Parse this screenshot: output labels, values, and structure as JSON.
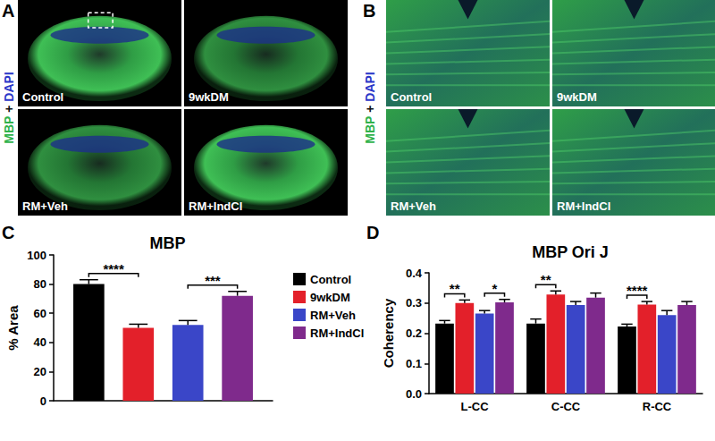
{
  "image_panels": [
    {
      "label": "A",
      "stain": [
        {
          "text": "MBP",
          "color": "#2fb24a"
        },
        {
          "text": "+",
          "color": "#111111"
        },
        {
          "text": "DAPI",
          "color": "#2a36c8"
        }
      ],
      "images": [
        "Control",
        "9wkDM",
        "RM+Veh",
        "RM+IndCl"
      ]
    },
    {
      "label": "B",
      "stain": [
        {
          "text": "MBP",
          "color": "#2fb24a"
        },
        {
          "text": "+",
          "color": "#111111"
        },
        {
          "text": "DAPI",
          "color": "#2a36c8"
        }
      ],
      "images": [
        "Control",
        "9wkDM",
        "RM+Veh",
        "RM+IndCl"
      ]
    }
  ],
  "chart_data": [
    {
      "panel": "C",
      "type": "bar",
      "title": "MBP",
      "y_label": "% Area",
      "categories": [
        null
      ],
      "series": [
        {
          "name": "Control",
          "color": "#000000",
          "values": [
            80
          ],
          "errors": [
            3
          ]
        },
        {
          "name": "9wkDM",
          "color": "#e3202a",
          "values": [
            50
          ],
          "errors": [
            2.5
          ]
        },
        {
          "name": "RM+Veh",
          "color": "#3a46c8",
          "values": [
            52
          ],
          "errors": [
            3
          ]
        },
        {
          "name": "RM+IndCl",
          "color": "#7f2a8c",
          "values": [
            72
          ],
          "errors": [
            3
          ]
        }
      ],
      "ylim": [
        0,
        100
      ],
      "yticks": [
        0,
        20,
        40,
        60,
        80,
        100
      ],
      "grid": false,
      "legend": "right",
      "tick_labels": "y",
      "annotations": [
        {
          "text": "****",
          "category": 0,
          "between": [
            "Control",
            "9wkDM"
          ]
        },
        {
          "text": "***",
          "category": 0,
          "between": [
            "RM+Veh",
            "RM+IndCl"
          ]
        }
      ]
    },
    {
      "panel": "D",
      "type": "bar",
      "title": "MBP Ori J",
      "y_label": "Coherency",
      "categories": [
        "L-CC",
        "C-CC",
        "R-CC"
      ],
      "series": [
        {
          "name": "Control",
          "color": "#000000",
          "values": [
            0.232,
            0.232,
            0.222
          ],
          "errors": [
            0.01,
            0.015,
            0.008
          ]
        },
        {
          "name": "9wkDM",
          "color": "#e3202a",
          "values": [
            0.3,
            0.328,
            0.295
          ],
          "errors": [
            0.01,
            0.012,
            0.01
          ]
        },
        {
          "name": "RM+Veh",
          "color": "#3a46c8",
          "values": [
            0.265,
            0.293,
            0.26
          ],
          "errors": [
            0.01,
            0.012,
            0.015
          ]
        },
        {
          "name": "RM+IndCl",
          "color": "#7f2a8c",
          "values": [
            0.302,
            0.318,
            0.293
          ],
          "errors": [
            0.01,
            0.015,
            0.012
          ]
        }
      ],
      "ylim": [
        0,
        0.4
      ],
      "yticks": [
        {
          "value": 0,
          "label": "0.0"
        },
        0.1,
        0.2,
        0.3,
        0.4
      ],
      "grid": false,
      "annotations": [
        {
          "text": "**",
          "category": 0,
          "between": [
            "Control",
            "9wkDM"
          ]
        },
        {
          "text": "*",
          "category": 0,
          "between": [
            "RM+Veh",
            "RM+IndCl"
          ]
        },
        {
          "text": "**",
          "category": 1,
          "between": [
            "Control",
            "9wkDM"
          ]
        },
        {
          "text": "****",
          "category": 2,
          "between": [
            "Control",
            "9wkDM"
          ]
        }
      ]
    }
  ]
}
